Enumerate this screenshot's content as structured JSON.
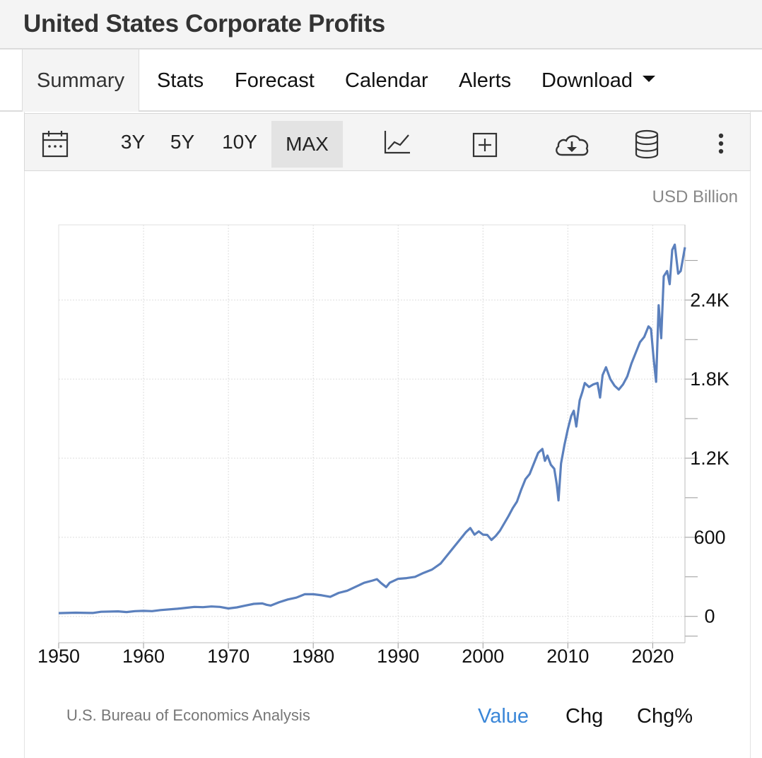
{
  "title": "United States Corporate Profits",
  "tabs": [
    {
      "label": "Summary",
      "active": true
    },
    {
      "label": "Stats"
    },
    {
      "label": "Forecast"
    },
    {
      "label": "Calendar"
    },
    {
      "label": "Alerts"
    },
    {
      "label": "Download",
      "has_dropdown": true
    }
  ],
  "toolbar": {
    "ranges": [
      "3Y",
      "5Y",
      "10Y",
      "MAX"
    ],
    "selected_range": "MAX",
    "icons": [
      "calendar-icon",
      "line-chart-icon",
      "add-indicator-icon",
      "cloud-download-icon",
      "database-icon",
      "more-vertical-icon"
    ]
  },
  "view_toggle": {
    "options": [
      "Value",
      "Chg",
      "Chg%"
    ],
    "selected": "Value"
  },
  "source": "U.S. Bureau of Economics Analysis",
  "colors": {
    "line": "#5b80bd",
    "active_toggle": "#3b87d8",
    "grid": "#dddddd"
  },
  "chart_data": {
    "type": "line",
    "unit_label": "USD Billion",
    "x_ticks": [
      "1950",
      "1960",
      "1970",
      "1980",
      "1990",
      "2000",
      "2010",
      "2020"
    ],
    "y_ticks": [
      "0",
      "600",
      "1.2K",
      "1.8K",
      "2.4K"
    ],
    "y_tick_values": [
      0,
      600,
      1200,
      1800,
      2400
    ],
    "xlim": [
      1950,
      2023.8
    ],
    "ylim": [
      -200,
      2970
    ],
    "y_axis_side": "right",
    "grid": true,
    "series": [
      {
        "points": [
          [
            1950,
            25
          ],
          [
            1952,
            28
          ],
          [
            1954,
            26
          ],
          [
            1955,
            35
          ],
          [
            1957,
            38
          ],
          [
            1958,
            33
          ],
          [
            1959,
            40
          ],
          [
            1960,
            42
          ],
          [
            1961,
            40
          ],
          [
            1962,
            48
          ],
          [
            1964,
            58
          ],
          [
            1965,
            65
          ],
          [
            1966,
            72
          ],
          [
            1967,
            70
          ],
          [
            1968,
            75
          ],
          [
            1969,
            72
          ],
          [
            1970,
            60
          ],
          [
            1971,
            68
          ],
          [
            1972,
            82
          ],
          [
            1973,
            95
          ],
          [
            1974,
            98
          ],
          [
            1974.5,
            88
          ],
          [
            1975,
            82
          ],
          [
            1976,
            108
          ],
          [
            1977,
            128
          ],
          [
            1978,
            142
          ],
          [
            1979,
            168
          ],
          [
            1980,
            168
          ],
          [
            1981,
            160
          ],
          [
            1982,
            148
          ],
          [
            1983,
            178
          ],
          [
            1984,
            195
          ],
          [
            1985,
            225
          ],
          [
            1986,
            255
          ],
          [
            1987,
            272
          ],
          [
            1987.5,
            282
          ],
          [
            1988,
            252
          ],
          [
            1988.6,
            222
          ],
          [
            1989,
            255
          ],
          [
            1990,
            285
          ],
          [
            1991,
            290
          ],
          [
            1992,
            300
          ],
          [
            1993,
            330
          ],
          [
            1994,
            355
          ],
          [
            1995,
            400
          ],
          [
            1996,
            480
          ],
          [
            1997,
            560
          ],
          [
            1998,
            640
          ],
          [
            1998.5,
            670
          ],
          [
            1999,
            620
          ],
          [
            1999.5,
            645
          ],
          [
            2000,
            620
          ],
          [
            2000.5,
            618
          ],
          [
            2001,
            580
          ],
          [
            2001.5,
            610
          ],
          [
            2002,
            650
          ],
          [
            2003,
            760
          ],
          [
            2003.5,
            820
          ],
          [
            2004,
            870
          ],
          [
            2004.5,
            960
          ],
          [
            2005,
            1040
          ],
          [
            2005.5,
            1080
          ],
          [
            2006,
            1160
          ],
          [
            2006.5,
            1240
          ],
          [
            2007,
            1270
          ],
          [
            2007.3,
            1180
          ],
          [
            2007.6,
            1220
          ],
          [
            2008,
            1150
          ],
          [
            2008.4,
            1120
          ],
          [
            2008.7,
            1000
          ],
          [
            2008.9,
            880
          ],
          [
            2009.2,
            1160
          ],
          [
            2009.6,
            1300
          ],
          [
            2010,
            1420
          ],
          [
            2010.4,
            1520
          ],
          [
            2010.7,
            1560
          ],
          [
            2011,
            1440
          ],
          [
            2011.4,
            1640
          ],
          [
            2011.7,
            1700
          ],
          [
            2012,
            1770
          ],
          [
            2012.5,
            1740
          ],
          [
            2013,
            1760
          ],
          [
            2013.5,
            1770
          ],
          [
            2013.8,
            1660
          ],
          [
            2014.1,
            1830
          ],
          [
            2014.5,
            1890
          ],
          [
            2015,
            1800
          ],
          [
            2015.5,
            1750
          ],
          [
            2016,
            1720
          ],
          [
            2016.5,
            1760
          ],
          [
            2017,
            1820
          ],
          [
            2017.5,
            1920
          ],
          [
            2018,
            2000
          ],
          [
            2018.5,
            2080
          ],
          [
            2019,
            2120
          ],
          [
            2019.5,
            2200
          ],
          [
            2019.8,
            2180
          ],
          [
            2020.1,
            1960
          ],
          [
            2020.4,
            1780
          ],
          [
            2020.7,
            2360
          ],
          [
            2021,
            2110
          ],
          [
            2021.3,
            2580
          ],
          [
            2021.7,
            2620
          ],
          [
            2022,
            2520
          ],
          [
            2022.3,
            2780
          ],
          [
            2022.6,
            2820
          ],
          [
            2023,
            2600
          ],
          [
            2023.3,
            2620
          ],
          [
            2023.8,
            2800
          ]
        ]
      }
    ]
  }
}
